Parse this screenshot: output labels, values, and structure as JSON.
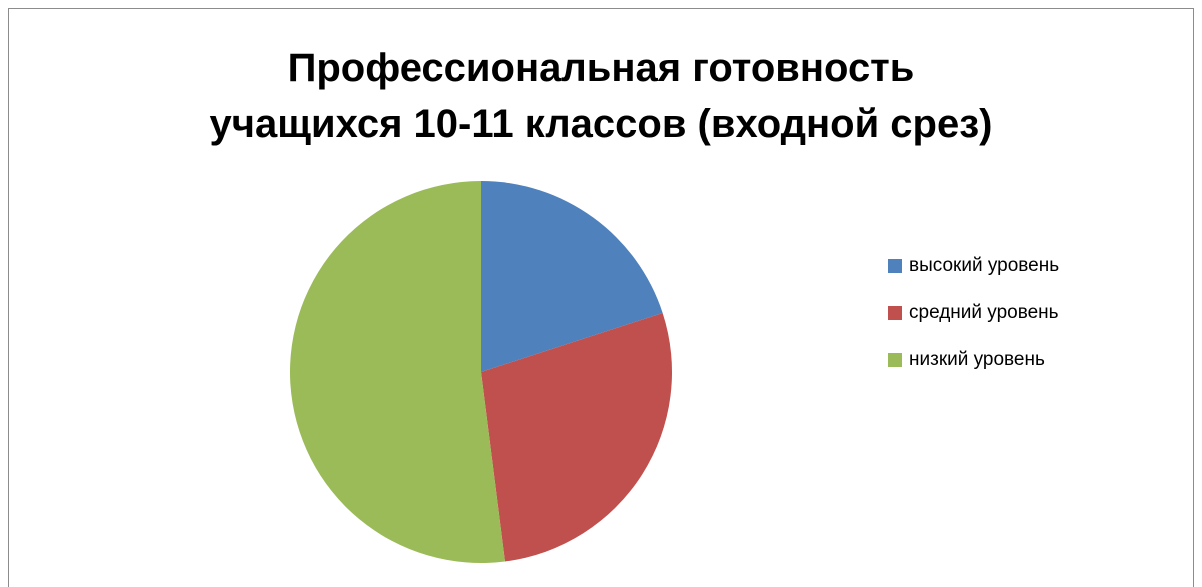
{
  "chart_data": {
    "type": "pie",
    "title_lines": [
      "Профессиональная готовность",
      "учащихся 10-11  классов (входной срез)"
    ],
    "start_angle_deg": 90,
    "direction": "clockwise",
    "slices": [
      {
        "name": "высокий уровень",
        "value": 20,
        "color": "#4f81bd"
      },
      {
        "name": "средний уровень",
        "value": 28,
        "color": "#c0504d"
      },
      {
        "name": "низкий уровень",
        "value": 52,
        "color": "#9bbb59"
      }
    ],
    "legend_position": "right"
  }
}
